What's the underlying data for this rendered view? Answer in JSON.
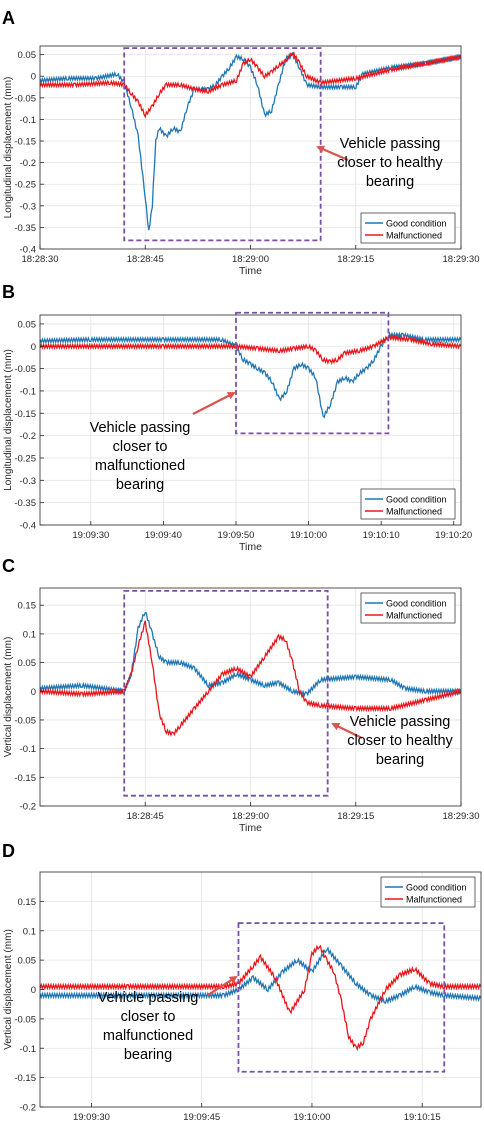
{
  "colors": {
    "good": "#1f77b4",
    "bad": "#e8161b",
    "box": "#7b4fa3",
    "arrow": "#d9534f",
    "grid": "#e3e3e3",
    "axis": "#262626"
  },
  "chart_data": [
    {
      "type": "line",
      "panel": "A",
      "xlabel": "Time",
      "ylabel": "Longitudinal displacement (mm)",
      "xlim": [
        "18:28:30",
        "18:29:30"
      ],
      "ylim": [
        -0.4,
        0.07
      ],
      "xticks": [
        "18:28:30",
        "18:28:45",
        "18:29:00",
        "18:29:15",
        "18:29:30"
      ],
      "yticks": [
        0.05,
        0,
        -0.05,
        -0.1,
        -0.15,
        -0.2,
        -0.25,
        -0.3,
        -0.35,
        -0.4
      ],
      "ytick_labels": [
        "0.05",
        "0",
        "-0.05",
        "-0.1",
        "-0.15",
        "-0.2",
        "-0.25",
        "-0.3",
        "-0.35",
        "-0.4"
      ],
      "legend": {
        "placement": "bottom-right",
        "entries": [
          "Good condition",
          "Malfunctioned"
        ]
      },
      "box": {
        "x": [
          "18:28:42",
          "18:29:10"
        ],
        "y": [
          0.065,
          -0.38
        ]
      },
      "annotation": {
        "lines": [
          "Vehicle passing",
          "closer to healthy",
          "bearing"
        ],
        "placement": "right-of-box"
      },
      "series": [
        {
          "name": "Good condition",
          "x": [
            "18:28:30",
            "18:28:34",
            "18:28:38",
            "18:28:41",
            "18:28:42",
            "18:28:43",
            "18:28:44",
            "18:28:45",
            "18:28:45.5",
            "18:28:46",
            "18:28:46.5",
            "18:28:47",
            "18:28:48",
            "18:28:49",
            "18:28:50",
            "18:28:51",
            "18:28:52",
            "18:28:53",
            "18:28:54",
            "18:28:55",
            "18:28:56",
            "18:28:57",
            "18:28:58",
            "18:28:59",
            "18:29:00",
            "18:29:01",
            "18:29:02",
            "18:29:03",
            "18:29:04",
            "18:29:05",
            "18:29:06",
            "18:29:07",
            "18:29:08",
            "18:29:10",
            "18:29:13",
            "18:29:15",
            "18:29:16",
            "18:29:20",
            "18:29:25",
            "18:29:30"
          ],
          "values": [
            -0.01,
            -0.005,
            -0.005,
            0.005,
            -0.015,
            -0.07,
            -0.14,
            -0.28,
            -0.36,
            -0.3,
            -0.15,
            -0.12,
            -0.14,
            -0.12,
            -0.13,
            -0.07,
            -0.03,
            -0.03,
            -0.03,
            -0.02,
            0.0,
            0.02,
            0.045,
            0.04,
            0.02,
            -0.02,
            -0.09,
            -0.08,
            -0.02,
            0.04,
            0.05,
            0.02,
            -0.02,
            -0.025,
            -0.025,
            -0.025,
            0.005,
            0.02,
            0.03,
            0.045
          ]
        },
        {
          "name": "Malfunctioned",
          "x": [
            "18:28:30",
            "18:28:35",
            "18:28:40",
            "18:28:42",
            "18:28:43",
            "18:28:44",
            "18:28:45",
            "18:28:46",
            "18:28:47",
            "18:28:48",
            "18:28:50",
            "18:28:52",
            "18:28:54",
            "18:28:56",
            "18:28:58",
            "18:28:59",
            "18:29:00",
            "18:29:01",
            "18:29:02",
            "18:29:03",
            "18:29:04",
            "18:29:05",
            "18:29:06",
            "18:29:07",
            "18:29:08",
            "18:29:10",
            "18:29:15",
            "18:29:20",
            "18:29:25",
            "18:29:30"
          ],
          "values": [
            -0.02,
            -0.02,
            -0.015,
            -0.02,
            -0.04,
            -0.06,
            -0.09,
            -0.07,
            -0.04,
            -0.02,
            -0.02,
            -0.03,
            -0.035,
            -0.02,
            -0.01,
            0.03,
            0.04,
            0.02,
            0.0,
            0.01,
            0.025,
            0.035,
            0.055,
            0.03,
            0.0,
            -0.015,
            -0.005,
            0.015,
            0.03,
            0.045
          ]
        }
      ]
    },
    {
      "type": "line",
      "panel": "B",
      "xlabel": "Time",
      "ylabel": "Longitudinal displacement (mm)",
      "xlim": [
        "19:09:23",
        "19:10:21"
      ],
      "ylim": [
        -0.4,
        0.07
      ],
      "xticks": [
        "19:09:30",
        "19:09:40",
        "19:09:50",
        "19:10:00",
        "19:10:10",
        "19:10:20"
      ],
      "yticks": [
        0.05,
        0,
        -0.05,
        -0.1,
        -0.15,
        -0.2,
        -0.25,
        -0.3,
        -0.35,
        -0.4
      ],
      "ytick_labels": [
        "0.05",
        "0",
        "-0.05",
        "-0.1",
        "-0.15",
        "-0.2",
        "-0.25",
        "-0.3",
        "-0.35",
        "-0.4"
      ],
      "legend": {
        "placement": "bottom-right",
        "entries": [
          "Good condition",
          "Malfunctioned"
        ]
      },
      "box": {
        "x": [
          "19:09:50",
          "19:10:11"
        ],
        "y": [
          0.075,
          -0.195
        ]
      },
      "annotation": {
        "lines": [
          "Vehicle passing",
          "closer to",
          "malfunctioned",
          "bearing"
        ],
        "placement": "left-of-box"
      },
      "series": [
        {
          "name": "Good condition",
          "x": [
            "19:09:23",
            "19:09:30",
            "19:09:40",
            "19:09:48",
            "19:09:50",
            "19:09:51",
            "19:09:52",
            "19:09:53",
            "19:09:54",
            "19:09:55",
            "19:09:56",
            "19:09:57",
            "19:09:58",
            "19:09:59",
            "19:10:00",
            "19:10:01",
            "19:10:02",
            "19:10:03",
            "19:10:04",
            "19:10:05",
            "19:10:06",
            "19:10:07",
            "19:10:08",
            "19:10:09",
            "19:10:10",
            "19:10:11",
            "19:10:13",
            "19:10:16",
            "19:10:21"
          ],
          "values": [
            0.012,
            0.015,
            0.015,
            0.015,
            0.0,
            -0.03,
            -0.04,
            -0.05,
            -0.06,
            -0.08,
            -0.12,
            -0.1,
            -0.05,
            -0.04,
            -0.05,
            -0.07,
            -0.16,
            -0.13,
            -0.08,
            -0.07,
            -0.08,
            -0.06,
            -0.05,
            -0.03,
            0.0,
            0.025,
            0.025,
            0.015,
            0.015
          ]
        },
        {
          "name": "Malfunctioned",
          "x": [
            "19:09:23",
            "19:09:40",
            "19:09:50",
            "19:09:53",
            "19:09:56",
            "19:09:58",
            "19:10:00",
            "19:10:01",
            "19:10:02",
            "19:10:03",
            "19:10:04",
            "19:10:05",
            "19:10:07",
            "19:10:09",
            "19:10:11",
            "19:10:14",
            "19:10:17",
            "19:10:21"
          ],
          "values": [
            0.0,
            0.0,
            0.0,
            -0.005,
            -0.01,
            -0.005,
            0.0,
            -0.01,
            -0.03,
            -0.035,
            -0.03,
            -0.015,
            -0.01,
            0.0,
            0.02,
            0.015,
            0.005,
            0.0
          ]
        }
      ]
    },
    {
      "type": "line",
      "panel": "C",
      "xlabel": "Time",
      "ylabel": "Vertical displacement (mm)",
      "xlim": [
        "18:28:30",
        "18:29:30"
      ],
      "ylim": [
        -0.2,
        0.18
      ],
      "xticks": [
        "18:28:45",
        "18:29:00",
        "18:29:15",
        "18:29:30"
      ],
      "yticks": [
        0.15,
        0.1,
        0.05,
        0,
        -0.05,
        -0.1,
        -0.15,
        -0.2
      ],
      "ytick_labels": [
        "0.15",
        "0.1",
        "0.05",
        "0",
        "-0.05",
        "-0.1",
        "-0.15",
        "-0.2"
      ],
      "legend": {
        "placement": "top-right",
        "entries": [
          "Good condition",
          "Malfunctioned"
        ]
      },
      "box": {
        "x": [
          "18:28:42",
          "18:29:11"
        ],
        "y": [
          0.175,
          -0.182
        ]
      },
      "annotation": {
        "lines": [
          "Vehicle passing",
          "closer to healthy",
          "bearing"
        ],
        "placement": "right-of-box"
      },
      "series": [
        {
          "name": "Good condition",
          "x": [
            "18:28:30",
            "18:28:36",
            "18:28:42",
            "18:28:43",
            "18:28:44",
            "18:28:45",
            "18:28:46",
            "18:28:47",
            "18:28:48",
            "18:28:50",
            "18:28:52",
            "18:28:54",
            "18:28:56",
            "18:28:58",
            "18:29:00",
            "18:29:02",
            "18:29:04",
            "18:29:06",
            "18:29:08",
            "18:29:10",
            "18:29:15",
            "18:29:20",
            "18:29:22",
            "18:29:25",
            "18:29:30"
          ],
          "values": [
            0.005,
            0.01,
            0.0,
            0.03,
            0.11,
            0.14,
            0.1,
            0.06,
            0.05,
            0.05,
            0.04,
            0.01,
            0.015,
            0.03,
            0.02,
            0.01,
            0.015,
            0.0,
            -0.005,
            0.02,
            0.025,
            0.02,
            0.005,
            0.0,
            0.0
          ]
        },
        {
          "name": "Malfunctioned",
          "x": [
            "18:28:30",
            "18:28:36",
            "18:28:42",
            "18:28:43",
            "18:28:44",
            "18:28:45",
            "18:28:46",
            "18:28:47",
            "18:28:48",
            "18:28:49",
            "18:28:50",
            "18:28:52",
            "18:28:54",
            "18:28:56",
            "18:28:58",
            "18:29:00",
            "18:29:02",
            "18:29:04",
            "18:29:05",
            "18:29:06",
            "18:29:07",
            "18:29:08",
            "18:29:10",
            "18:29:15",
            "18:29:20",
            "18:29:25",
            "18:29:30"
          ],
          "values": [
            0.0,
            -0.005,
            0.0,
            0.03,
            0.08,
            0.12,
            0.05,
            -0.04,
            -0.07,
            -0.075,
            -0.06,
            -0.03,
            0.0,
            0.03,
            0.04,
            0.025,
            0.06,
            0.095,
            0.09,
            0.05,
            0.0,
            -0.02,
            -0.025,
            -0.03,
            -0.03,
            -0.015,
            0.0
          ]
        }
      ]
    },
    {
      "type": "line",
      "panel": "D",
      "xlabel": "Time",
      "ylabel": "Vertical displacement (mm)",
      "xlim": [
        "19:09:23",
        "19:10:23"
      ],
      "ylim": [
        -0.2,
        0.2
      ],
      "xticks": [
        "19:09:30",
        "19:09:45",
        "19:10:00",
        "19:10:15"
      ],
      "yticks": [
        0.15,
        0.1,
        0.05,
        0,
        -0.05,
        -0.1,
        -0.15,
        -0.2
      ],
      "ytick_labels": [
        "0.15",
        "0.1",
        "0.05",
        "0",
        "-0.05",
        "-0.1",
        "-0.15",
        "-0.2"
      ],
      "legend": {
        "placement": "top-right",
        "entries": [
          "Good condition",
          "Malfunctioned"
        ]
      },
      "box": {
        "x": [
          "19:09:50",
          "19:10:18"
        ],
        "y": [
          0.113,
          -0.14
        ]
      },
      "annotation": {
        "lines": [
          "Vehicle passing",
          "closer to",
          "malfunctioned",
          "bearing"
        ],
        "placement": "left-of-box"
      },
      "series": [
        {
          "name": "Good condition",
          "x": [
            "19:09:23",
            "19:09:35",
            "19:09:48",
            "19:09:50",
            "19:09:52",
            "19:09:54",
            "19:09:56",
            "19:09:58",
            "19:10:00",
            "19:10:02",
            "19:10:04",
            "19:10:06",
            "19:10:08",
            "19:10:10",
            "19:10:12",
            "19:10:14",
            "19:10:16",
            "19:10:18",
            "19:10:23"
          ],
          "values": [
            -0.01,
            -0.01,
            -0.01,
            0.0,
            0.02,
            0.0,
            0.03,
            0.05,
            0.03,
            0.07,
            0.04,
            0.01,
            -0.01,
            -0.02,
            -0.01,
            0.005,
            -0.005,
            -0.01,
            -0.015
          ]
        },
        {
          "name": "Malfunctioned",
          "x": [
            "19:09:23",
            "19:09:35",
            "19:09:48",
            "19:09:50",
            "19:09:52",
            "19:09:53",
            "19:09:55",
            "19:09:57",
            "19:09:59",
            "19:10:00",
            "19:10:01",
            "19:10:02",
            "19:10:03",
            "19:10:04",
            "19:10:05",
            "19:10:06",
            "19:10:07",
            "19:10:08",
            "19:10:10",
            "19:10:12",
            "19:10:14",
            "19:10:16",
            "19:10:18",
            "19:10:23"
          ],
          "values": [
            0.005,
            0.005,
            0.005,
            0.01,
            0.04,
            0.055,
            0.02,
            -0.04,
            0.0,
            0.06,
            0.075,
            0.05,
            0.03,
            -0.02,
            -0.08,
            -0.1,
            -0.09,
            -0.05,
            0.0,
            0.025,
            0.035,
            0.01,
            0.005,
            0.005
          ]
        }
      ]
    }
  ]
}
